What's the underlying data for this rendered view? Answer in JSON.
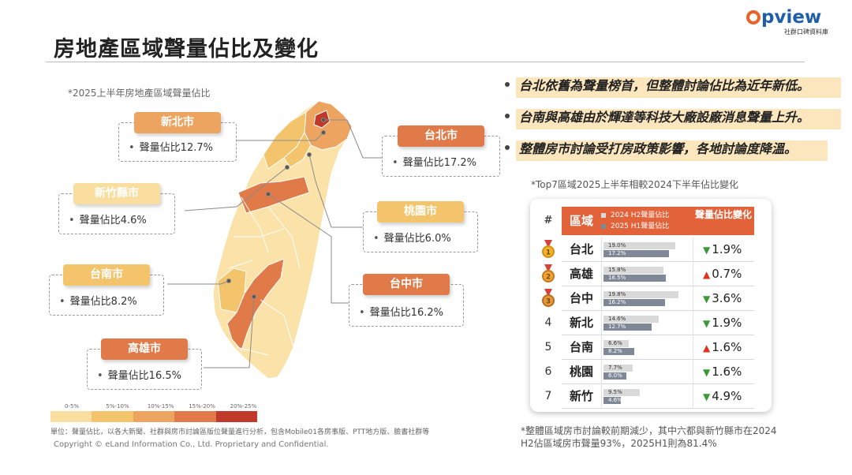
{
  "page": {
    "title": "房地產區域聲量佔比及變化",
    "logo_text": "pview",
    "logo_subtitle": "社群口碑資料庫"
  },
  "colors": {
    "accent": "#e2623a",
    "scale": [
      "#f9dea0",
      "#f3c46b",
      "#eda461",
      "#e07a48",
      "#c0392b"
    ],
    "arrow_down": "#3a9a3a",
    "arrow_up": "#e03020",
    "highlight": "#fbe6bd"
  },
  "map_section": {
    "caption": "*2025上半年房地產區域聲量佔比",
    "callouts": [
      {
        "name": "新北市",
        "value_label": "聲量佔比12.7%",
        "color": "#eda461"
      },
      {
        "name": "台北市",
        "value_label": "聲量佔比17.2%",
        "color": "#e07a48"
      },
      {
        "name": "新竹縣市",
        "value_label": "聲量佔比4.6%",
        "color": "#f9dea0"
      },
      {
        "name": "桃園市",
        "value_label": "聲量佔比6.0%",
        "color": "#f3c46b"
      },
      {
        "name": "台南市",
        "value_label": "聲量佔比8.2%",
        "color": "#f3c46b"
      },
      {
        "name": "台中市",
        "value_label": "聲量佔比16.2%",
        "color": "#e07a48"
      },
      {
        "name": "高雄市",
        "value_label": "聲量佔比16.5%",
        "color": "#e07a48"
      }
    ],
    "legend": [
      "0-5%",
      "5%-10%",
      "10%-15%",
      "15%-20%",
      "20%-25%"
    ],
    "footnote": "單位：聲量佔比，以各大新聞、社群與房市討論區版位聲量進行分析，包含Mobile01各房事版、PTT地方版、臉書社群等",
    "copyright": "Copyright © eLand Information Co., Ltd. Proprietary and Confidential."
  },
  "bullets": [
    "台北依舊為聲量榜首，但整體討論佔比為近年新低。",
    "台南與高雄由於輝達等科技大廠設廠消息聲量上升。",
    "整體房市討論受打房政策影響，各地討論度降溫。"
  ],
  "table": {
    "caption": "*Top7區域2025上半年相較2024下半年佔比變化",
    "header": {
      "hash": "#",
      "region": "區域",
      "legend_h2": "2024 H2聲量佔比",
      "legend_h1": "2025 H1聲量佔比",
      "change": "聲量佔比變化"
    },
    "note": "*整體區域房市討論較前期減少，其中六都與新竹縣市在2024 H2佔區域房市聲量93%，2025H1則為81.4%"
  },
  "chart_data": {
    "type": "bar",
    "title": "*Top7區域2025上半年相較2024下半年佔比變化",
    "categories": [
      "台北",
      "高雄",
      "台中",
      "新北",
      "台南",
      "桃園",
      "新竹"
    ],
    "ranks": [
      "1",
      "2",
      "3",
      "4",
      "5",
      "6",
      "7"
    ],
    "series": [
      {
        "name": "2024 H2聲量佔比",
        "values": [
          19.0,
          15.8,
          19.8,
          14.6,
          6.6,
          7.7,
          9.5
        ],
        "color": "#d9d9d9"
      },
      {
        "name": "2025 H1聲量佔比",
        "values": [
          17.2,
          16.5,
          16.2,
          12.7,
          8.2,
          6.0,
          4.6
        ],
        "color": "#7f8896"
      }
    ],
    "value_labels_h2": [
      "19.0%",
      "15.8%",
      "19.8%",
      "14.6%",
      "6.6%",
      "7.7%",
      "9.5%"
    ],
    "value_labels_h1": [
      "17.2%",
      "16.5%",
      "16.2%",
      "12.7%",
      "8.2%",
      "6.0%",
      "4.6%"
    ],
    "change": [
      {
        "dir": "down",
        "label": "1.9%"
      },
      {
        "dir": "up",
        "label": "0.7%"
      },
      {
        "dir": "down",
        "label": "3.6%"
      },
      {
        "dir": "down",
        "label": "1.9%"
      },
      {
        "dir": "up",
        "label": "1.6%"
      },
      {
        "dir": "down",
        "label": "1.6%"
      },
      {
        "dir": "down",
        "label": "4.9%"
      }
    ],
    "medals": [
      "gold",
      "silver",
      "bronze"
    ],
    "xlim": [
      0,
      20
    ]
  }
}
